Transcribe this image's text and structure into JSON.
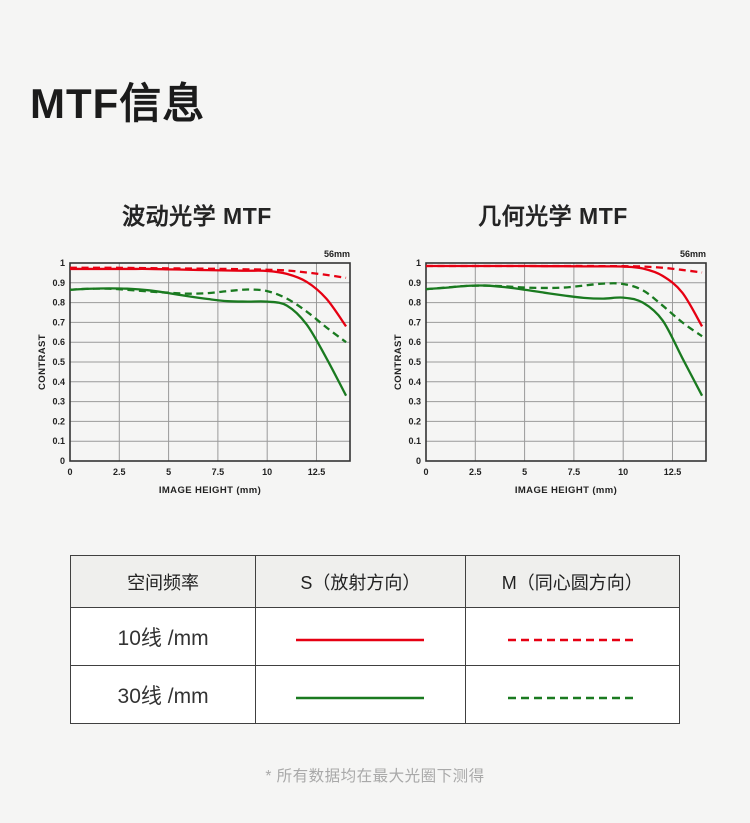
{
  "page": {
    "title": "MTF信息",
    "footnote": "* 所有数据均在最大光圈下测得",
    "background": "#f5f5f4"
  },
  "colors": {
    "red": "#e60012",
    "green": "#1a7a20",
    "grid": "#9a9a9a",
    "axis": "#333333"
  },
  "chart_data": [
    {
      "type": "line",
      "title": "波动光学 MTF",
      "corner_label": "56mm",
      "xlabel": "IMAGE HEIGHT (mm)",
      "ylabel": "CONTRAST",
      "xlim": [
        0,
        14.2
      ],
      "ylim": [
        0,
        1
      ],
      "xticks": [
        0,
        2.5,
        5,
        7.5,
        10,
        12.5
      ],
      "yticks": [
        0,
        0.1,
        0.2,
        0.3,
        0.4,
        0.5,
        0.6,
        0.7,
        0.8,
        0.9,
        1
      ],
      "grid": true,
      "x": [
        0,
        1,
        2,
        3,
        4,
        5,
        6,
        7,
        8,
        9,
        10,
        11,
        12,
        13,
        14
      ],
      "series": [
        {
          "name": "S 10线/mm",
          "color": "#e60012",
          "dash": false,
          "values": [
            0.97,
            0.97,
            0.97,
            0.97,
            0.97,
            0.968,
            0.966,
            0.964,
            0.962,
            0.961,
            0.96,
            0.945,
            0.905,
            0.82,
            0.68
          ]
        },
        {
          "name": "M 10线/mm",
          "color": "#e60012",
          "dash": true,
          "values": [
            0.976,
            0.976,
            0.976,
            0.975,
            0.974,
            0.973,
            0.972,
            0.971,
            0.97,
            0.968,
            0.966,
            0.962,
            0.952,
            0.94,
            0.925
          ]
        },
        {
          "name": "S 30线/mm",
          "color": "#1a7a20",
          "dash": false,
          "values": [
            0.865,
            0.87,
            0.872,
            0.87,
            0.862,
            0.848,
            0.832,
            0.818,
            0.807,
            0.805,
            0.805,
            0.785,
            0.69,
            0.52,
            0.33
          ]
        },
        {
          "name": "M 30线/mm",
          "color": "#1a7a20",
          "dash": true,
          "values": [
            0.865,
            0.87,
            0.87,
            0.864,
            0.856,
            0.85,
            0.845,
            0.848,
            0.858,
            0.866,
            0.858,
            0.82,
            0.755,
            0.675,
            0.6
          ]
        }
      ]
    },
    {
      "type": "line",
      "title": "几何光学 MTF",
      "corner_label": "56mm",
      "xlabel": "IMAGE HEIGHT (mm)",
      "ylabel": "CONTRAST",
      "xlim": [
        0,
        14.2
      ],
      "ylim": [
        0,
        1
      ],
      "xticks": [
        0,
        2.5,
        5,
        7.5,
        10,
        12.5
      ],
      "yticks": [
        0,
        0.1,
        0.2,
        0.3,
        0.4,
        0.5,
        0.6,
        0.7,
        0.8,
        0.9,
        1
      ],
      "grid": true,
      "x": [
        0,
        1,
        2,
        3,
        4,
        5,
        6,
        7,
        8,
        9,
        10,
        11,
        12,
        13,
        14
      ],
      "series": [
        {
          "name": "S 10线/mm",
          "color": "#e60012",
          "dash": false,
          "values": [
            0.985,
            0.985,
            0.985,
            0.985,
            0.985,
            0.985,
            0.984,
            0.984,
            0.983,
            0.983,
            0.982,
            0.972,
            0.935,
            0.85,
            0.68
          ]
        },
        {
          "name": "M 10线/mm",
          "color": "#e60012",
          "dash": true,
          "values": [
            0.985,
            0.985,
            0.985,
            0.985,
            0.985,
            0.985,
            0.985,
            0.985,
            0.985,
            0.984,
            0.984,
            0.982,
            0.976,
            0.965,
            0.952
          ]
        },
        {
          "name": "S 30线/mm",
          "color": "#1a7a20",
          "dash": false,
          "values": [
            0.868,
            0.875,
            0.884,
            0.886,
            0.878,
            0.865,
            0.85,
            0.836,
            0.824,
            0.82,
            0.825,
            0.8,
            0.71,
            0.52,
            0.33
          ]
        },
        {
          "name": "M 30线/mm",
          "color": "#1a7a20",
          "dash": true,
          "values": [
            0.868,
            0.876,
            0.884,
            0.886,
            0.882,
            0.876,
            0.874,
            0.876,
            0.886,
            0.896,
            0.894,
            0.862,
            0.785,
            0.7,
            0.63
          ]
        }
      ]
    }
  ],
  "table": {
    "headers": [
      "空间频率",
      "S（放射方向）",
      "M（同心圆方向）"
    ],
    "rows": [
      {
        "label": "10线 /mm",
        "color": "#e60012"
      },
      {
        "label": "30线 /mm",
        "color": "#1a7a20"
      }
    ]
  }
}
